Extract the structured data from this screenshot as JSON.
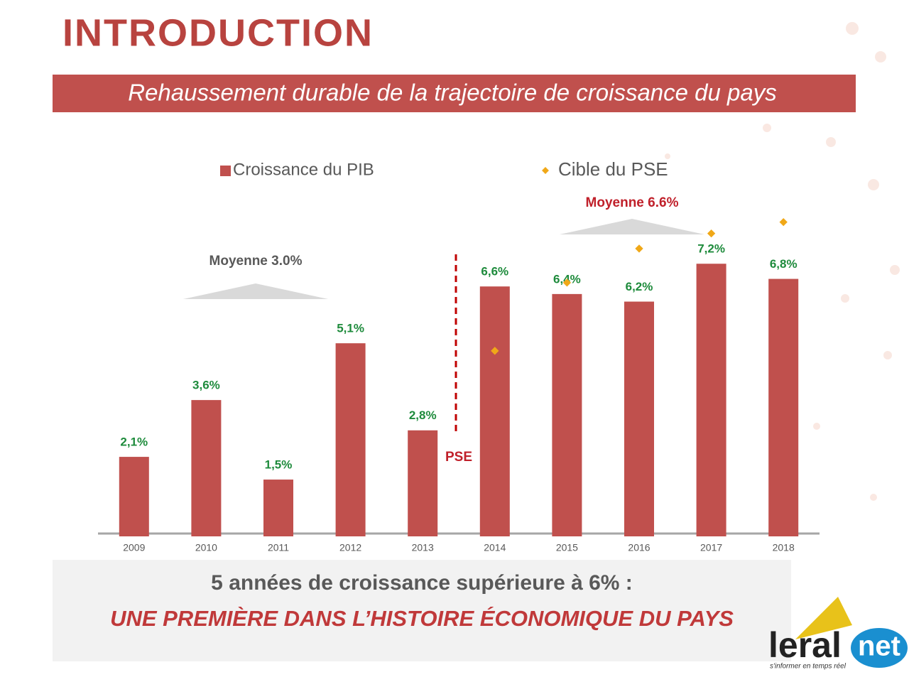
{
  "header": {
    "title": "INTRODUCTION",
    "subtitle": "Rehaussement durable de la trajectoire de croissance du pays"
  },
  "chart_data": {
    "type": "bar",
    "categories": [
      "2009",
      "2010",
      "2011",
      "2012",
      "2013",
      "2014",
      "2015",
      "2016",
      "2017",
      "2018"
    ],
    "series": [
      {
        "name": "Croissance du PIB",
        "type": "bar",
        "color": "#c0504d",
        "values": [
          2.1,
          3.6,
          1.5,
          5.1,
          2.8,
          6.6,
          6.4,
          6.2,
          7.2,
          6.8
        ],
        "value_labels": [
          "2,1%",
          "3,6%",
          "1,5%",
          "5,1%",
          "2,8%",
          "6,6%",
          "6,4%",
          "6,2%",
          "7,2%",
          "6,8%"
        ]
      },
      {
        "name": "Cible du PSE",
        "type": "scatter",
        "color": "#f0a818",
        "values": [
          null,
          null,
          null,
          null,
          null,
          4.9,
          6.7,
          7.6,
          8.0,
          8.3
        ]
      }
    ],
    "ylim": [
      0,
      10
    ],
    "annotations": [
      "Moyenne 3.0%",
      "Moyenne 6.6%",
      "PSE"
    ]
  },
  "footer": {
    "line1": "5 années de croissance supérieure à 6% :",
    "line2": "UNE PREMIÈRE DANS L’HISTOIRE ÉCONOMIQUE DU PAYS"
  },
  "logo": {
    "name1": "leral",
    "name2": "net",
    "tagline": "s'informer en temps réel"
  }
}
